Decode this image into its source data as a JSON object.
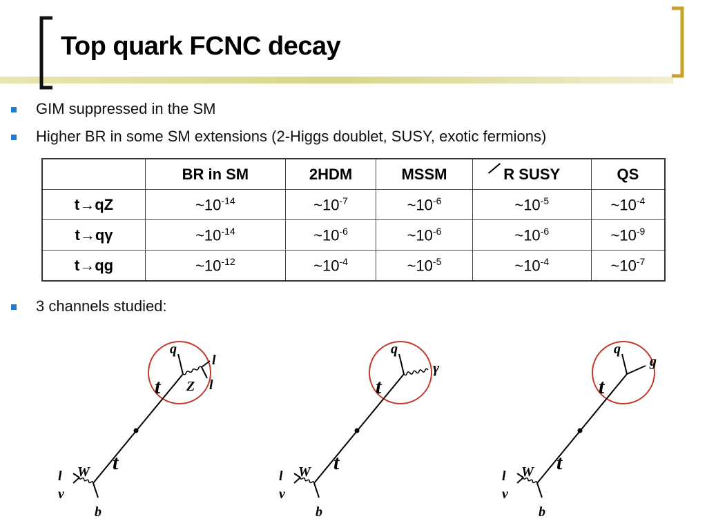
{
  "title": "Top quark FCNC decay",
  "bullets": [
    "GIM suppressed in the SM",
    "Higher BR in some SM extensions (2-Higgs doublet, SUSY, exotic fermions)",
    "3 channels studied:"
  ],
  "table": {
    "header": [
      "BR in SM",
      "2HDM",
      "MSSM",
      "R SUSY",
      "QS"
    ],
    "base": "~10",
    "rows": [
      {
        "process": "t→qZ",
        "exponents": [
          "-14",
          "-7",
          "-6",
          "-5",
          "-4"
        ]
      },
      {
        "process": "t→qγ",
        "exponents": [
          "-14",
          "-6",
          "-6",
          "-6",
          "-9"
        ]
      },
      {
        "process": "t→qg",
        "exponents": [
          "-12",
          "-4",
          "-5",
          "-4",
          "-7"
        ]
      }
    ]
  },
  "diagrams": [
    {
      "kind": "Z",
      "q": "q",
      "products": [
        "l",
        "Z",
        "l"
      ],
      "top_upper": "t",
      "top_lower": "t",
      "w": "W",
      "lepton": "l",
      "neutrino": "ν",
      "bottom": "b"
    },
    {
      "kind": "gamma",
      "q": "q",
      "products": [
        "γ"
      ],
      "top_upper": "t",
      "top_lower": "t",
      "w": "W",
      "lepton": "l",
      "neutrino": "ν",
      "bottom": "b"
    },
    {
      "kind": "gluon",
      "q": "q",
      "products": [
        "g"
      ],
      "top_upper": "t",
      "top_lower": "t",
      "w": "W",
      "lepton": "l",
      "neutrino": "ν",
      "bottom": "b"
    }
  ]
}
